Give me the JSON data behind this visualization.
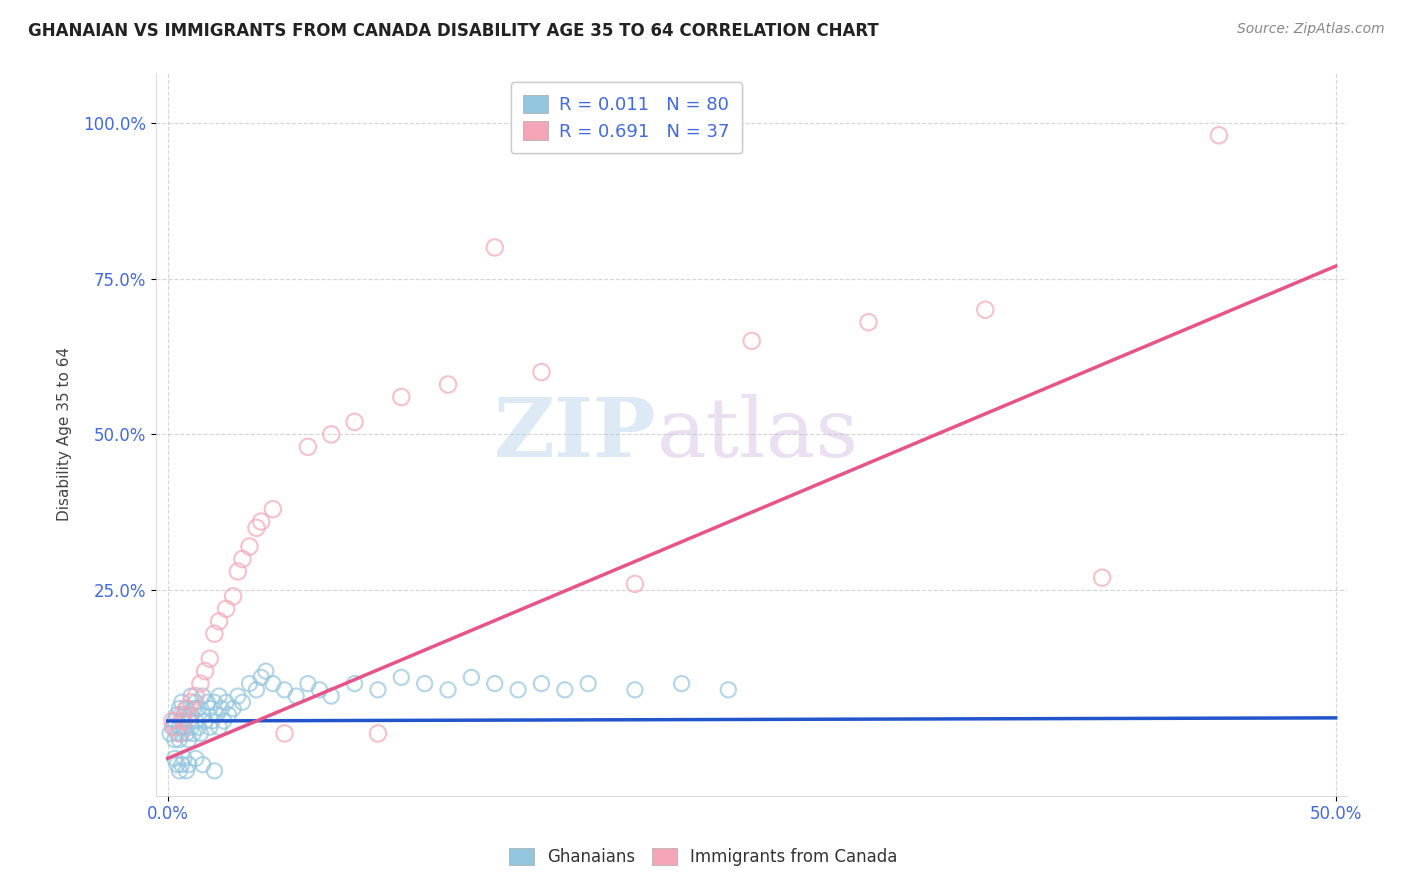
{
  "title": "GHANAIAN VS IMMIGRANTS FROM CANADA DISABILITY AGE 35 TO 64 CORRELATION CHART",
  "source": "Source: ZipAtlas.com",
  "ylabel": "Disability Age 35 to 64",
  "xlim": [
    -0.005,
    0.505
  ],
  "ylim": [
    -0.08,
    1.08
  ],
  "xticks": [
    0.0,
    0.5
  ],
  "yticks": [
    0.25,
    0.5,
    0.75,
    1.0
  ],
  "legend_r1": "R = 0.011",
  "legend_n1": "N = 80",
  "legend_r2": "R = 0.691",
  "legend_n2": "N = 37",
  "color_blue": "#92c5de",
  "color_pink": "#f4a6b8",
  "trendline_blue": "#2255cc",
  "trendline_pink": "#e8548a",
  "watermark_zip": "ZIP",
  "watermark_atlas": "atlas",
  "grid_color": "#cccccc",
  "background_color": "#ffffff",
  "blue_scatter_x": [
    0.001,
    0.002,
    0.003,
    0.003,
    0.004,
    0.004,
    0.005,
    0.005,
    0.005,
    0.006,
    0.006,
    0.006,
    0.007,
    0.007,
    0.008,
    0.008,
    0.009,
    0.009,
    0.01,
    0.01,
    0.01,
    0.011,
    0.011,
    0.012,
    0.012,
    0.013,
    0.013,
    0.014,
    0.015,
    0.015,
    0.016,
    0.017,
    0.018,
    0.018,
    0.019,
    0.02,
    0.021,
    0.022,
    0.022,
    0.023,
    0.024,
    0.025,
    0.026,
    0.028,
    0.03,
    0.032,
    0.035,
    0.038,
    0.04,
    0.042,
    0.045,
    0.05,
    0.055,
    0.06,
    0.065,
    0.07,
    0.08,
    0.09,
    0.1,
    0.11,
    0.12,
    0.13,
    0.14,
    0.15,
    0.16,
    0.17,
    0.18,
    0.2,
    0.22,
    0.24,
    0.003,
    0.004,
    0.005,
    0.006,
    0.007,
    0.008,
    0.009,
    0.012,
    0.015,
    0.02
  ],
  "blue_scatter_y": [
    0.02,
    0.03,
    0.01,
    0.04,
    0.02,
    0.05,
    0.01,
    0.03,
    0.06,
    0.02,
    0.04,
    0.07,
    0.03,
    0.05,
    0.02,
    0.06,
    0.01,
    0.04,
    0.03,
    0.05,
    0.08,
    0.02,
    0.06,
    0.04,
    0.07,
    0.03,
    0.06,
    0.02,
    0.05,
    0.08,
    0.04,
    0.07,
    0.03,
    0.06,
    0.04,
    0.07,
    0.05,
    0.03,
    0.08,
    0.06,
    0.04,
    0.07,
    0.05,
    0.06,
    0.08,
    0.07,
    0.1,
    0.09,
    0.11,
    0.12,
    0.1,
    0.09,
    0.08,
    0.1,
    0.09,
    0.08,
    0.1,
    0.09,
    0.11,
    0.1,
    0.09,
    0.11,
    0.1,
    0.09,
    0.1,
    0.09,
    0.1,
    0.09,
    0.1,
    0.09,
    -0.02,
    -0.03,
    -0.04,
    -0.03,
    -0.02,
    -0.04,
    -0.03,
    -0.02,
    -0.03,
    -0.04
  ],
  "pink_scatter_x": [
    0.002,
    0.003,
    0.005,
    0.006,
    0.007,
    0.008,
    0.009,
    0.01,
    0.012,
    0.014,
    0.016,
    0.018,
    0.02,
    0.022,
    0.025,
    0.028,
    0.03,
    0.032,
    0.035,
    0.038,
    0.04,
    0.045,
    0.05,
    0.06,
    0.07,
    0.08,
    0.09,
    0.1,
    0.12,
    0.14,
    0.16,
    0.2,
    0.25,
    0.3,
    0.35,
    0.4,
    0.45
  ],
  "pink_scatter_y": [
    0.04,
    0.03,
    0.02,
    0.05,
    0.04,
    0.06,
    0.05,
    0.07,
    0.08,
    0.1,
    0.12,
    0.14,
    0.18,
    0.2,
    0.22,
    0.24,
    0.28,
    0.3,
    0.32,
    0.35,
    0.36,
    0.38,
    0.02,
    0.48,
    0.5,
    0.52,
    0.02,
    0.56,
    0.58,
    0.8,
    0.6,
    0.26,
    0.65,
    0.68,
    0.7,
    0.27,
    0.98
  ],
  "blue_trend_x": [
    0.0,
    0.5
  ],
  "blue_trend_y": [
    0.04,
    0.045
  ],
  "pink_trend_x": [
    0.0,
    0.5
  ],
  "pink_trend_y": [
    -0.02,
    0.77
  ]
}
